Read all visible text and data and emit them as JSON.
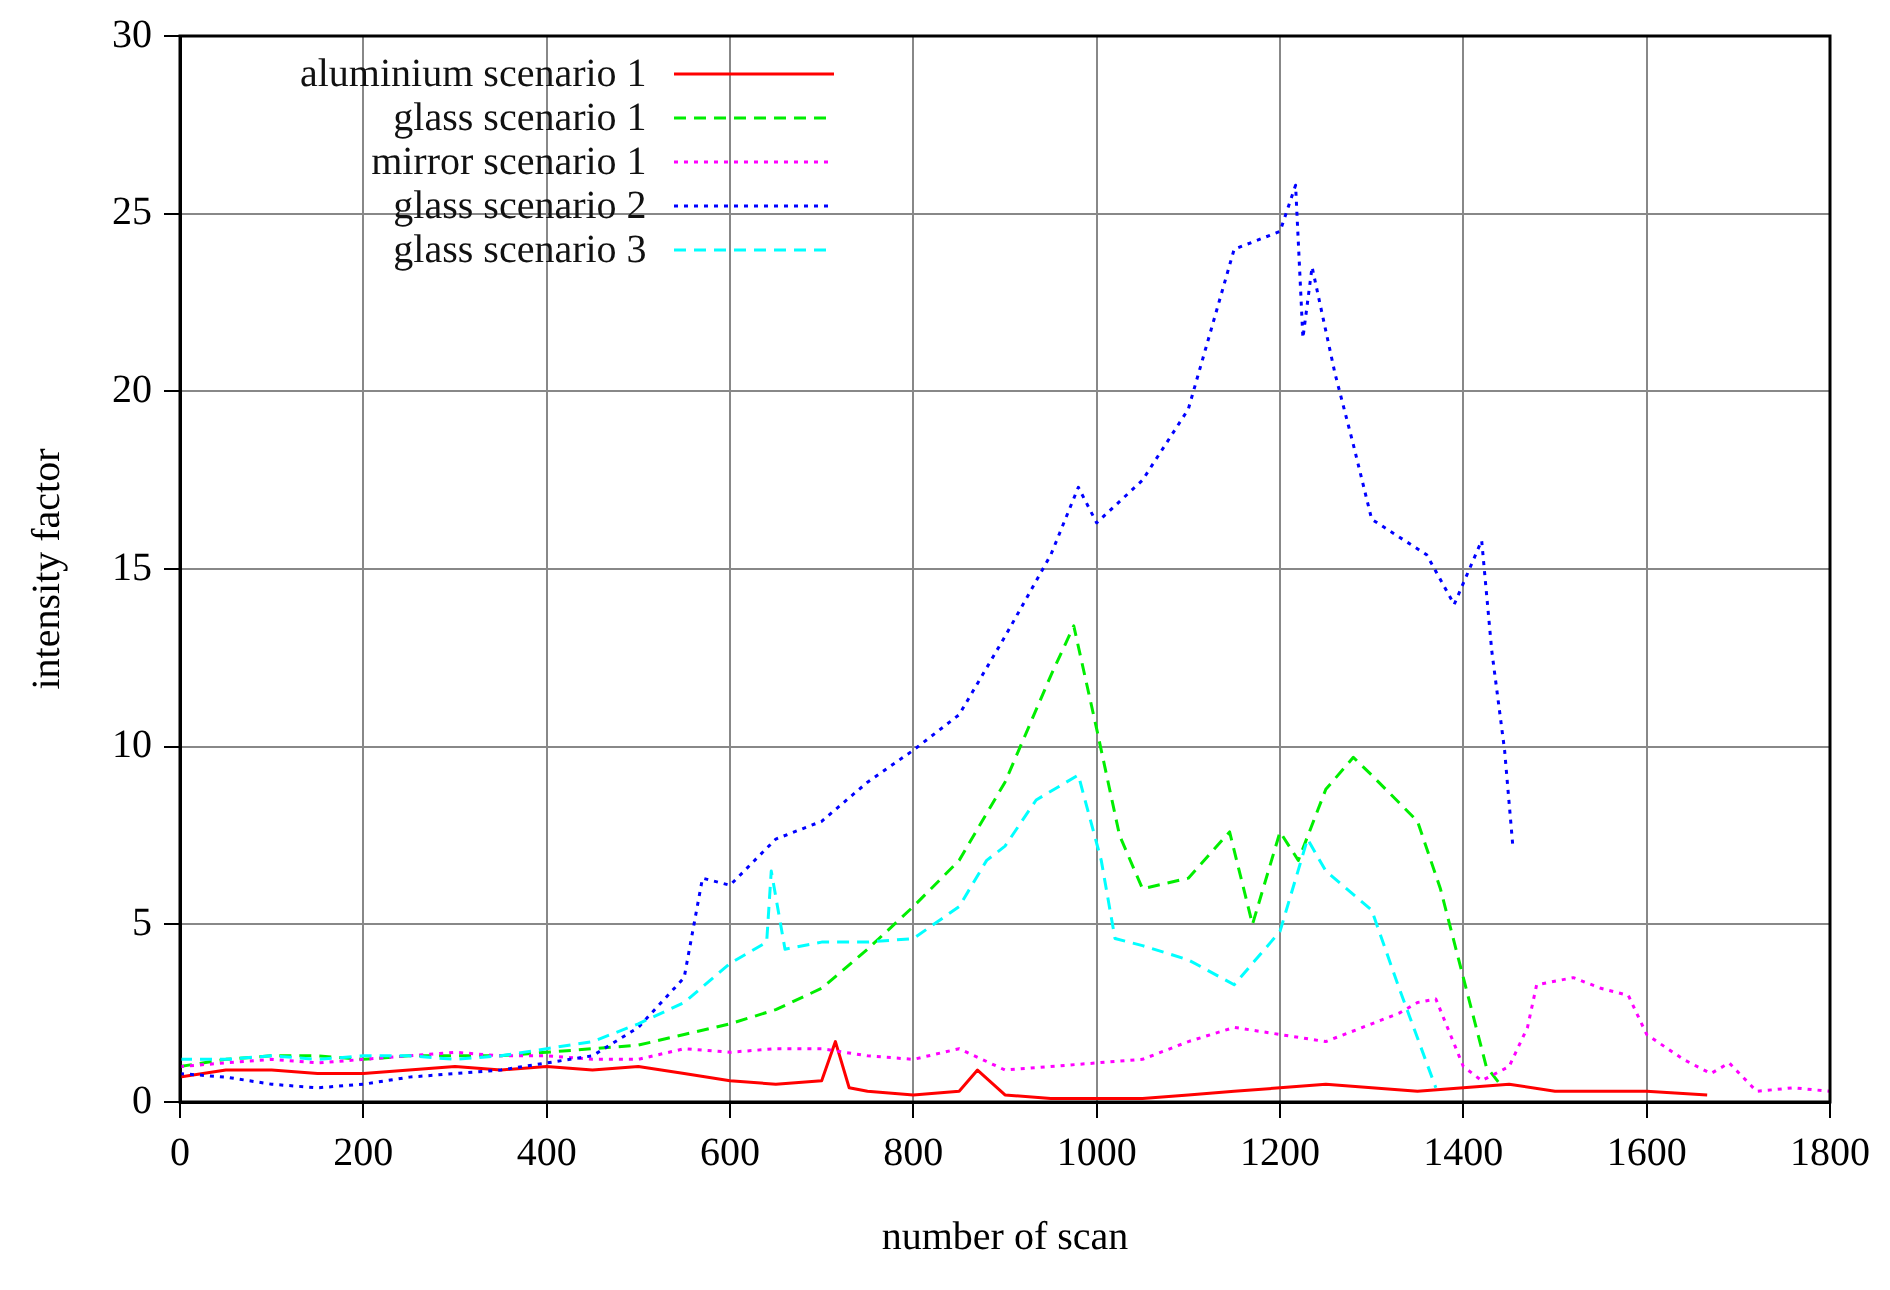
{
  "chart_data": {
    "type": "line",
    "xlabel": "number of scan",
    "ylabel": "intensity factor",
    "xlim": [
      0,
      1800
    ],
    "xticks": [
      0,
      200,
      400,
      600,
      800,
      1000,
      1200,
      1400,
      1600,
      1800
    ],
    "ylim": [
      0,
      30
    ],
    "yticks": [
      0,
      5,
      10,
      15,
      20,
      25,
      30
    ],
    "grid": true,
    "legend": "top left",
    "marker": "none",
    "series": [
      {
        "name": "aluminium scenario 1",
        "color": "#ff0000",
        "line_style": "solid",
        "x": [
          0,
          50,
          100,
          150,
          200,
          250,
          300,
          350,
          400,
          450,
          500,
          550,
          600,
          650,
          700,
          715,
          730,
          750,
          800,
          850,
          870,
          900,
          950,
          1000,
          1050,
          1100,
          1150,
          1200,
          1250,
          1300,
          1350,
          1400,
          1450,
          1500,
          1550,
          1600,
          1666
        ],
        "values": [
          0.7,
          0.9,
          0.9,
          0.8,
          0.8,
          0.9,
          1.0,
          0.9,
          1.0,
          0.9,
          1.0,
          0.8,
          0.6,
          0.5,
          0.6,
          1.7,
          0.4,
          0.3,
          0.2,
          0.3,
          0.9,
          0.2,
          0.1,
          0.1,
          0.1,
          0.2,
          0.3,
          0.4,
          0.5,
          0.4,
          0.3,
          0.4,
          0.5,
          0.3,
          0.3,
          0.3,
          0.2
        ]
      },
      {
        "name": "glass scenario 1",
        "color": "#00ee00",
        "line_style": "dashed",
        "x": [
          0,
          50,
          100,
          150,
          200,
          250,
          300,
          350,
          400,
          450,
          500,
          550,
          600,
          650,
          700,
          750,
          800,
          850,
          900,
          950,
          975,
          1000,
          1025,
          1050,
          1100,
          1145,
          1170,
          1200,
          1220,
          1250,
          1280,
          1300,
          1350,
          1375,
          1400,
          1425,
          1440
        ],
        "values": [
          1.0,
          1.2,
          1.3,
          1.3,
          1.2,
          1.3,
          1.3,
          1.3,
          1.4,
          1.5,
          1.6,
          1.9,
          2.2,
          2.6,
          3.2,
          4.3,
          5.5,
          6.8,
          9.0,
          12.0,
          13.4,
          10.5,
          7.5,
          6.0,
          6.3,
          7.6,
          5.0,
          7.6,
          6.8,
          8.8,
          9.7,
          9.2,
          7.9,
          6.0,
          3.5,
          1.0,
          0.5
        ]
      },
      {
        "name": "mirror scenario 1",
        "color": "#ff00ff",
        "line_style": "dotted",
        "x": [
          0,
          50,
          100,
          150,
          200,
          250,
          300,
          350,
          400,
          450,
          500,
          550,
          600,
          650,
          700,
          750,
          800,
          850,
          900,
          950,
          1000,
          1050,
          1100,
          1150,
          1200,
          1250,
          1300,
          1330,
          1350,
          1370,
          1400,
          1420,
          1450,
          1470,
          1480,
          1520,
          1550,
          1580,
          1600,
          1640,
          1670,
          1690,
          1720,
          1760,
          1800
        ],
        "values": [
          1.0,
          1.1,
          1.2,
          1.1,
          1.2,
          1.3,
          1.4,
          1.3,
          1.3,
          1.2,
          1.2,
          1.5,
          1.4,
          1.5,
          1.5,
          1.3,
          1.2,
          1.5,
          0.9,
          1.0,
          1.1,
          1.2,
          1.7,
          2.1,
          1.9,
          1.7,
          2.2,
          2.5,
          2.8,
          2.9,
          1.0,
          0.6,
          1.0,
          2.1,
          3.3,
          3.5,
          3.2,
          3.0,
          1.9,
          1.2,
          0.8,
          1.1,
          0.3,
          0.4,
          0.3
        ]
      },
      {
        "name": "glass scenario 2",
        "color": "#0000ff",
        "line_style": "dotted",
        "x": [
          0,
          50,
          100,
          150,
          200,
          250,
          300,
          350,
          400,
          450,
          500,
          550,
          570,
          600,
          650,
          700,
          750,
          800,
          850,
          900,
          950,
          980,
          1000,
          1050,
          1100,
          1150,
          1200,
          1217,
          1225,
          1235,
          1260,
          1280,
          1300,
          1360,
          1390,
          1420,
          1431,
          1445,
          1454
        ],
        "values": [
          0.8,
          0.7,
          0.5,
          0.4,
          0.5,
          0.7,
          0.8,
          0.9,
          1.1,
          1.3,
          2.1,
          3.5,
          6.3,
          6.1,
          7.4,
          7.9,
          9.0,
          9.9,
          10.9,
          13.1,
          15.4,
          17.3,
          16.3,
          17.5,
          19.5,
          24.0,
          24.5,
          25.8,
          21.5,
          23.5,
          20.5,
          18.5,
          16.4,
          15.4,
          14.0,
          15.8,
          12.7,
          9.9,
          7.2
        ]
      },
      {
        "name": "glass scenario 3",
        "color": "#00ffff",
        "line_style": "dashed",
        "x": [
          0,
          50,
          100,
          150,
          200,
          250,
          300,
          350,
          400,
          450,
          500,
          550,
          600,
          640,
          645,
          660,
          700,
          750,
          800,
          850,
          880,
          900,
          934,
          980,
          1005,
          1020,
          1050,
          1100,
          1150,
          1200,
          1230,
          1250,
          1300,
          1330,
          1370
        ],
        "values": [
          1.2,
          1.2,
          1.3,
          1.2,
          1.3,
          1.3,
          1.2,
          1.3,
          1.5,
          1.7,
          2.2,
          2.8,
          3.9,
          4.5,
          6.5,
          4.3,
          4.5,
          4.5,
          4.6,
          5.5,
          6.8,
          7.2,
          8.5,
          9.2,
          6.8,
          4.6,
          4.4,
          4.0,
          3.3,
          4.8,
          7.4,
          6.5,
          5.4,
          3.2,
          0.4
        ]
      }
    ]
  }
}
